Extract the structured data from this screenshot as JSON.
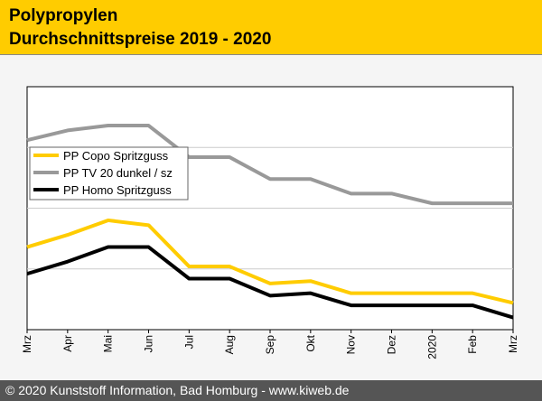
{
  "header": {
    "title_line1": "Polypropylen",
    "title_line2": "Durchschnittspreise 2019 - 2020"
  },
  "footer": {
    "copyright": "© 2020 Kunststoff Information, Bad Homburg - www.kiweb.de"
  },
  "colors": {
    "header_bg": "#ffcc00",
    "footer_bg": "#555555",
    "copo": "#ffcc00",
    "tv20": "#999999",
    "homo": "#000000"
  },
  "chart_data": {
    "type": "line",
    "title": "Polypropylen Durchschnittspreise 2019 - 2020",
    "xlabel": "",
    "ylabel": "",
    "categories": [
      "Mrz",
      "Apr",
      "Mai",
      "Jun",
      "Jul",
      "Aug",
      "Sep",
      "Okt",
      "Nov",
      "Dez",
      "2020",
      "Feb",
      "Mrz"
    ],
    "ylim": [
      0,
      100
    ],
    "grid": "horizontal",
    "legend_position": "center-left",
    "series": [
      {
        "name": "PP Copo Spritzguss",
        "values": [
          34,
          39,
          45,
          43,
          26,
          26,
          19,
          20,
          15,
          15,
          15,
          15,
          11
        ]
      },
      {
        "name": "PP TV 20 dunkel / sz",
        "values": [
          78,
          82,
          84,
          84,
          71,
          71,
          62,
          62,
          56,
          56,
          52,
          52,
          52
        ]
      },
      {
        "name": "PP Homo Spritzguss",
        "values": [
          23,
          28,
          34,
          34,
          21,
          21,
          14,
          15,
          10,
          10,
          10,
          10,
          5
        ]
      }
    ]
  }
}
